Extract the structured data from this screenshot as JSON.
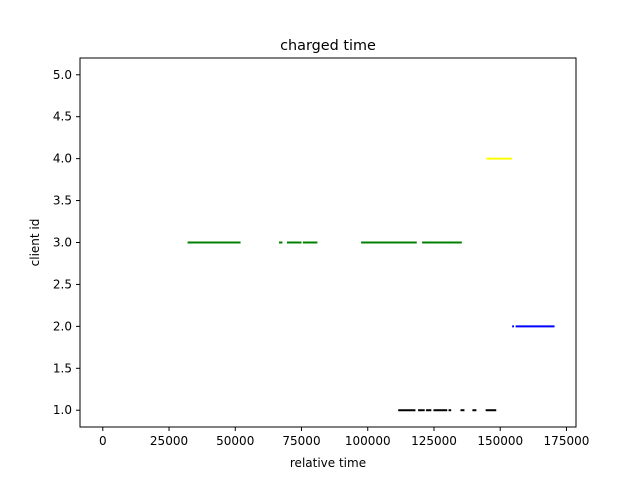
{
  "chart_data": {
    "type": "line",
    "title": "charged time",
    "xlabel": "relative time",
    "ylabel": "client id",
    "xlim": [
      -8600,
      178600
    ],
    "ylim": [
      0.8,
      5.2
    ],
    "xticks": [
      0,
      25000,
      50000,
      75000,
      100000,
      125000,
      150000,
      175000
    ],
    "xtick_labels": [
      "0",
      "25000",
      "50000",
      "75000",
      "100000",
      "125000",
      "150000",
      "175000"
    ],
    "yticks": [
      1.0,
      1.5,
      2.0,
      2.5,
      3.0,
      3.5,
      4.0,
      4.5,
      5.0
    ],
    "ytick_labels": [
      "1.0",
      "1.5",
      "2.0",
      "2.5",
      "3.0",
      "3.5",
      "4.0",
      "4.5",
      "5.0"
    ],
    "grid": false,
    "series": [
      {
        "client_id": 1,
        "color": "#000000",
        "segments": [
          [
            111500,
            118000
          ],
          [
            119000,
            121500
          ],
          [
            122000,
            124000
          ],
          [
            124800,
            130000
          ],
          [
            130500,
            131500
          ],
          [
            135000,
            136500
          ],
          [
            139500,
            141000
          ],
          [
            144500,
            148500
          ]
        ]
      },
      {
        "client_id": 2,
        "color": "#0000ff",
        "segments": [
          [
            154500,
            155200
          ],
          [
            155800,
            170500
          ]
        ]
      },
      {
        "client_id": 3,
        "color": "#008000",
        "segments": [
          [
            32000,
            52000
          ],
          [
            66500,
            67800
          ],
          [
            69500,
            75000
          ],
          [
            75500,
            81000
          ],
          [
            97500,
            118500
          ],
          [
            120500,
            135500
          ]
        ]
      },
      {
        "client_id": 4,
        "color": "#ffff00",
        "segments": [
          [
            144800,
            154500
          ]
        ]
      }
    ]
  }
}
